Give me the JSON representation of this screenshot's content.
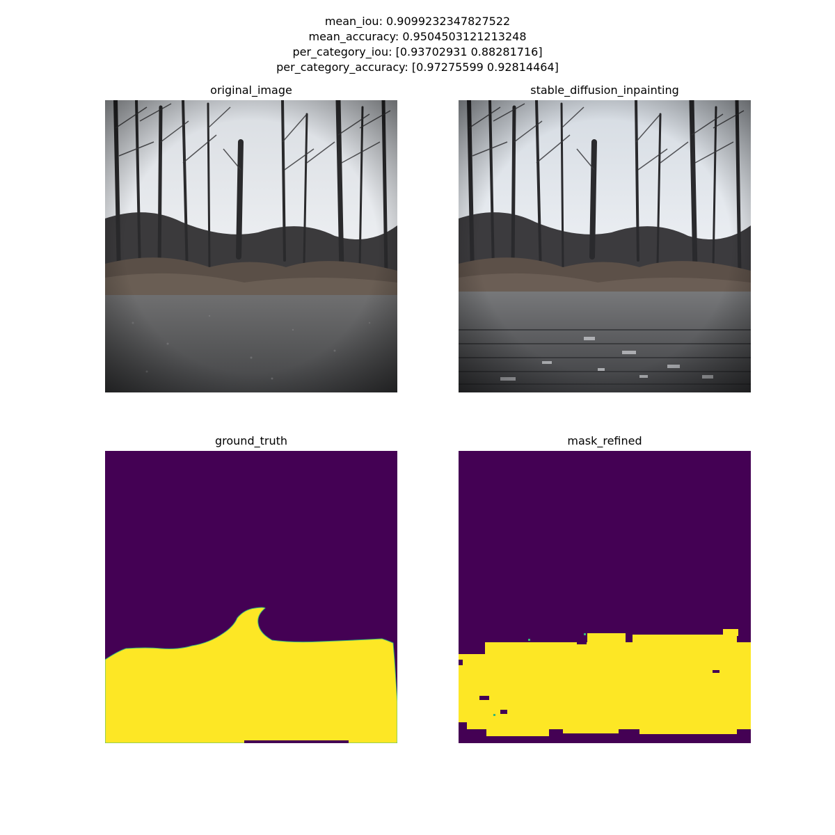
{
  "suptitle": {
    "line1": "mean_iou: 0.9099232347827522",
    "line2": "mean_accuracy: 0.9504503121213248",
    "line3": "per_category_iou: [0.93702931 0.88281716]",
    "line4": "per_category_accuracy: [0.97275599 0.92814464]"
  },
  "panels": [
    {
      "title": "original_image",
      "content": "forest-trail-photo"
    },
    {
      "title": "stable_diffusion_inpainting",
      "content": "inpainted-forest-trail-photo"
    },
    {
      "title": "ground_truth",
      "content": "segmentation-mask"
    },
    {
      "title": "mask_refined",
      "content": "segmentation-mask"
    }
  ],
  "colors": {
    "mask_background": "#440154",
    "mask_foreground": "#fde725",
    "mask_edge": "#35b779"
  }
}
